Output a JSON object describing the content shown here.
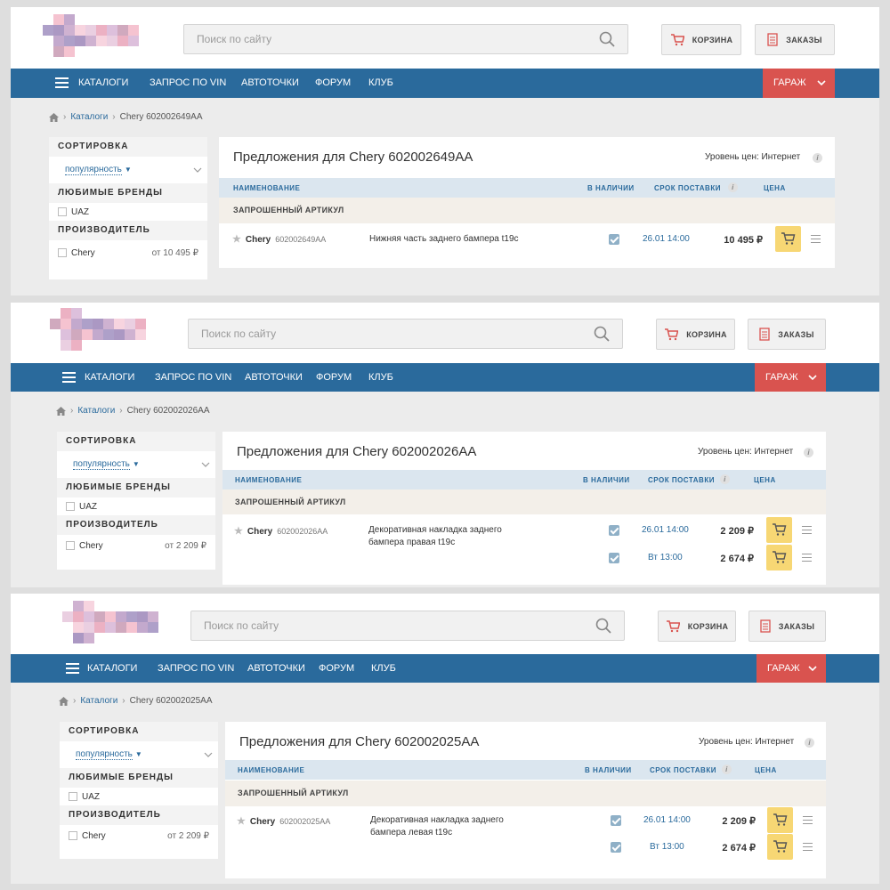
{
  "panels": [
    {
      "search_placeholder": "Поиск по сайту",
      "cart_label": "КОРЗИНА",
      "orders_label": "ЗАКАЗЫ",
      "nav": {
        "catalogs": "КАТАЛОГИ",
        "vin": "ЗАПРОС ПО VIN",
        "autopoints": "АВТОТОЧКИ",
        "forum": "ФОРУМ",
        "club": "КЛУБ",
        "garage": "ГАРАЖ"
      },
      "breadcrumb": {
        "catalogs": "Каталоги",
        "current": "Chery 602002649AA"
      },
      "sidebar": {
        "sort_title": "СОРТИРОВКА",
        "sort_value": "популярность",
        "brands_title": "ЛЮБИМЫЕ БРЕНДЫ",
        "brand": "UAZ",
        "maker_title": "ПРОИЗВОДИТЕЛЬ",
        "maker": "Chery",
        "maker_from": "от 10 495 ₽"
      },
      "title": "Предложения для  Chery 602002649AA",
      "price_level": "Уровень цен: Интернет",
      "columns": {
        "name": "НАИМЕНОВАНИЕ",
        "stock": "В НАЛИЧИИ",
        "delivery": "СРОК ПОСТАВКИ",
        "price": "ЦЕНА"
      },
      "requested": "ЗАПРОШЕННЫЙ АРТИКУЛ",
      "item": {
        "brand": "Chery",
        "article": "602002649AA",
        "desc_1": "Нижняя часть заднего бампера t19c",
        "desc_2": ""
      },
      "offers": [
        {
          "delivery": "26.01 14:00",
          "price": "10 495 ₽"
        }
      ]
    },
    {
      "search_placeholder": "Поиск по сайту",
      "cart_label": "КОРЗИНА",
      "orders_label": "ЗАКАЗЫ",
      "nav": {
        "catalogs": "КАТАЛОГИ",
        "vin": "ЗАПРОС ПО VIN",
        "autopoints": "АВТОТОЧКИ",
        "forum": "ФОРУМ",
        "club": "КЛУБ",
        "garage": "ГАРАЖ"
      },
      "breadcrumb": {
        "catalogs": "Каталоги",
        "current": "Chery 602002026AA"
      },
      "sidebar": {
        "sort_title": "СОРТИРОВКА",
        "sort_value": "популярность",
        "brands_title": "ЛЮБИМЫЕ БРЕНДЫ",
        "brand": "UAZ",
        "maker_title": "ПРОИЗВОДИТЕЛЬ",
        "maker": "Chery",
        "maker_from": "от 2 209 ₽"
      },
      "title": "Предложения для  Chery 602002026AA",
      "price_level": "Уровень цен: Интернет",
      "columns": {
        "name": "НАИМЕНОВАНИЕ",
        "stock": "В НАЛИЧИИ",
        "delivery": "СРОК ПОСТАВКИ",
        "price": "ЦЕНА"
      },
      "requested": "ЗАПРОШЕННЫЙ АРТИКУЛ",
      "item": {
        "brand": "Chery",
        "article": "602002026AA",
        "desc_1": "Декоративная накладка заднего",
        "desc_2": "бампера правая t19c"
      },
      "offers": [
        {
          "delivery": "26.01 14:00",
          "price": "2 209 ₽"
        },
        {
          "delivery": "Вт 13:00",
          "price": "2 674 ₽"
        }
      ]
    },
    {
      "search_placeholder": "Поиск по сайту",
      "cart_label": "КОРЗИНА",
      "orders_label": "ЗАКАЗЫ",
      "nav": {
        "catalogs": "КАТАЛОГИ",
        "vin": "ЗАПРОС ПО VIN",
        "autopoints": "АВТОТОЧКИ",
        "forum": "ФОРУМ",
        "club": "КЛУБ",
        "garage": "ГАРАЖ"
      },
      "breadcrumb": {
        "catalogs": "Каталоги",
        "current": "Chery 602002025AA"
      },
      "sidebar": {
        "sort_title": "СОРТИРОВКА",
        "sort_value": "популярность",
        "brands_title": "ЛЮБИМЫЕ БРЕНДЫ",
        "brand": "UAZ",
        "maker_title": "ПРОИЗВОДИТЕЛЬ",
        "maker": "Chery",
        "maker_from": "от 2 209 ₽"
      },
      "title": "Предложения для  Chery 602002025AA",
      "price_level": "Уровень цен: Интернет",
      "columns": {
        "name": "НАИМЕНОВАНИЕ",
        "stock": "В НАЛИЧИИ",
        "delivery": "СРОК ПОСТАВКИ",
        "price": "ЦЕНА"
      },
      "requested": "ЗАПРОШЕННЫЙ АРТИКУЛ",
      "item": {
        "brand": "Chery",
        "article": "602002025AA",
        "desc_1": "Декоративная накладка заднего",
        "desc_2": "бампера левая t19c"
      },
      "offers": [
        {
          "delivery": "26.01 14:00",
          "price": "2 209 ₽"
        },
        {
          "delivery": "Вт 13:00",
          "price": "2 674 ₽"
        }
      ]
    }
  ],
  "colors": {
    "nav": "#2a6a9c",
    "garage": "#d9534f",
    "cart_button": "#f7d774",
    "table_head": "#dbe6ef"
  },
  "icons": [
    "logo-blurred",
    "search-icon",
    "cart-icon",
    "orders-icon",
    "hamburger-icon",
    "chevron-down-icon",
    "home-icon",
    "star-icon",
    "info-icon",
    "checkbox-checked-icon",
    "add-to-cart-icon",
    "menu-icon"
  ]
}
